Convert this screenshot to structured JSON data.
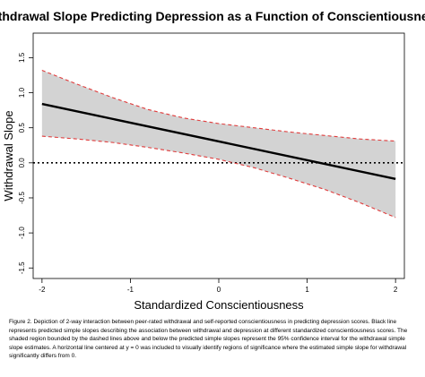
{
  "chart_data": {
    "type": "line",
    "title": "Withdrawal Slope Predicting Depression as a Function of Conscientiousness",
    "xlabel": "Standardized Conscientiousness",
    "ylabel": "Withdrawal Slope",
    "xlim": [
      -2.1,
      2.1
    ],
    "ylim": [
      -1.65,
      1.85
    ],
    "x_ticks": [
      -2,
      -1,
      0,
      1,
      2
    ],
    "x_tick_labels": [
      "-2",
      "-1",
      "0",
      "1",
      "2"
    ],
    "y_ticks": [
      -1.5,
      -1.0,
      -0.5,
      0.0,
      0.5,
      1.0,
      1.5
    ],
    "y_tick_labels": [
      "-1.5",
      "-1.0",
      "-0.5",
      "0.0",
      "0.5",
      "1.0",
      "1.5"
    ],
    "grid": false,
    "series": [
      {
        "x": [
          -2,
          2
        ],
        "values": [
          0.84,
          -0.23
        ],
        "color": "#000000",
        "style": "solid"
      },
      {
        "x": [
          -2,
          -1.6,
          -1.2,
          -0.8,
          -0.4,
          0,
          0.4,
          0.8,
          1.2,
          1.6,
          2
        ],
        "values": [
          0.38,
          0.34,
          0.29,
          0.22,
          0.14,
          0.05,
          -0.07,
          -0.22,
          -0.38,
          -0.57,
          -0.78
        ],
        "color": "#e03c3c",
        "style": "dashed"
      },
      {
        "x": [
          -2,
          -1.6,
          -1.2,
          -0.8,
          -0.4,
          0,
          0.4,
          0.8,
          1.2,
          1.6,
          2
        ],
        "values": [
          1.32,
          1.12,
          0.93,
          0.76,
          0.64,
          0.56,
          0.5,
          0.44,
          0.39,
          0.34,
          0.31
        ],
        "color": "#e03c3c",
        "style": "dashed"
      }
    ],
    "reference_line": {
      "y": 0,
      "style": "dotted",
      "color": "#000000"
    },
    "band_color": "#d3d3d3"
  },
  "caption": "Figure 2. Depiction of 2-way interaction between peer-rated withdrawal and self-reported conscientiousness in predicting depression scores. Black line represents predicted simple slopes describing the association between withdrawal and depression at different standardized conscientiousness scores. The shaded region bounded by the dashed lines above and below the predicted simple slopes represent the 95% confidence interval for the withdrawal simple slope estimates. A horizontal line centered at y = 0 was included to visually identify regions of significance where the estimated simple slope for withdrawal significantly differs from 0."
}
